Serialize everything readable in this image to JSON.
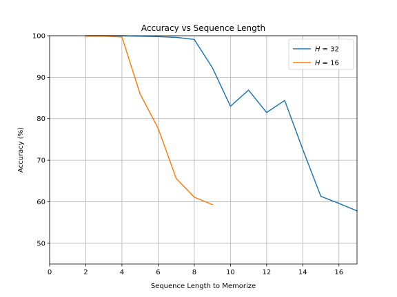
{
  "chart_data": {
    "type": "line",
    "title": "Accuracy vs Sequence Length",
    "xlabel": "Sequence Length to Memorize",
    "ylabel": "Accuracy (%)",
    "xlim": [
      0,
      17
    ],
    "ylim": [
      45,
      100
    ],
    "xticks": [
      0,
      2,
      4,
      6,
      8,
      10,
      12,
      14,
      16
    ],
    "yticks": [
      50,
      60,
      70,
      80,
      90,
      100
    ],
    "grid": true,
    "legend_position": "top-right",
    "series": [
      {
        "name": "H = 32",
        "legend_var": "H",
        "legend_value": "= 32",
        "color": "#1f77b4",
        "x": [
          2,
          3,
          4,
          5,
          6,
          7,
          8,
          9,
          10,
          11,
          12,
          13,
          14,
          15,
          16,
          17
        ],
        "y": [
          100,
          100,
          100,
          99.9,
          99.8,
          99.6,
          99.1,
          92.3,
          83.0,
          86.9,
          81.5,
          84.4,
          72.6,
          61.3,
          59.6,
          57.8
        ]
      },
      {
        "name": "H = 16",
        "legend_var": "H",
        "legend_value": "= 16",
        "color": "#ff7f0e",
        "x": [
          2,
          3,
          4,
          5,
          6,
          7,
          8,
          9
        ],
        "y": [
          99.9,
          99.9,
          99.7,
          86.0,
          77.7,
          65.6,
          61.1,
          59.3
        ]
      }
    ]
  }
}
